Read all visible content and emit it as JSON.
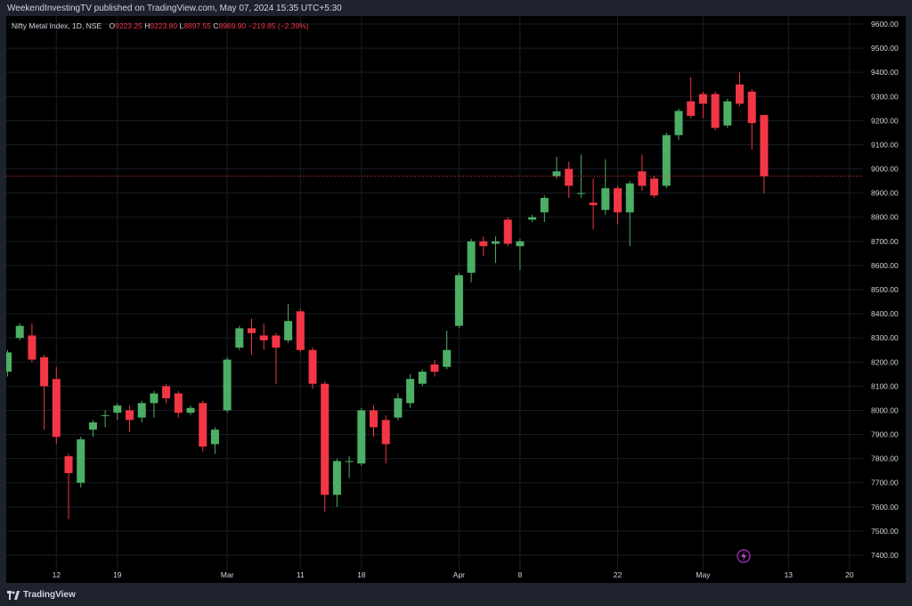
{
  "header": {
    "publisher": "WeekendInvestingTV published on TradingView.com, May 07, 2024 15:35 UTC+5:30"
  },
  "legend": {
    "symbol": "Nifty Metal Index, 1D, NSE",
    "open_label": "O",
    "open": "9223.25",
    "high_label": "H",
    "high": "9223.80",
    "low_label": "L",
    "low": "8897.55",
    "close_label": "C",
    "close": "8969.90",
    "change": "−219.85 (−2.39%)"
  },
  "footer": {
    "brand": "TradingView"
  },
  "colors": {
    "up": "#4caf65",
    "down": "#f23645",
    "price_line": "#f23645",
    "grid": "#1a1d26",
    "axis_text": "#d1d4dc"
  },
  "chart_data": {
    "type": "candlestick",
    "title": "Nifty Metal Index, 1D, NSE",
    "y_range": [
      7380,
      9640
    ],
    "y_ticks": [
      "9600.00",
      "9500.00",
      "9400.00",
      "9300.00",
      "9200.00",
      "9100.00",
      "9000.00",
      "8900.00",
      "8800.00",
      "8700.00",
      "8600.00",
      "8500.00",
      "8400.00",
      "8300.00",
      "8200.00",
      "8100.00",
      "8000.00",
      "7900.00",
      "7800.00",
      "7700.00",
      "7600.00",
      "7500.00",
      "7400.00"
    ],
    "x_ticks": [
      {
        "label": "12",
        "index": 4
      },
      {
        "label": "19",
        "index": 9
      },
      {
        "label": "Mar",
        "index": 18
      },
      {
        "label": "11",
        "index": 24
      },
      {
        "label": "18",
        "index": 29
      },
      {
        "label": "Apr",
        "index": 37
      },
      {
        "label": "8",
        "index": 42
      },
      {
        "label": "22",
        "index": 50
      },
      {
        "label": "May",
        "index": 57
      },
      {
        "label": "13",
        "index": 64
      },
      {
        "label": "20",
        "index": 69
      }
    ],
    "last_price": 8969.9,
    "candles": [
      [
        8160,
        8240,
        8140,
        8250
      ],
      [
        8300,
        8350,
        8290,
        8360
      ],
      [
        8310,
        8210,
        8200,
        8360
      ],
      [
        8220,
        8100,
        7920,
        8230
      ],
      [
        8130,
        7890,
        7860,
        8180
      ],
      [
        7810,
        7740,
        7550,
        7820
      ],
      [
        7700,
        7880,
        7680,
        7890
      ],
      [
        7920,
        7950,
        7890,
        7960
      ],
      [
        7980,
        7980,
        7930,
        8000
      ],
      [
        7990,
        8020,
        7960,
        8030
      ],
      [
        8000,
        7960,
        7910,
        8020
      ],
      [
        7970,
        8030,
        7950,
        8040
      ],
      [
        8030,
        8070,
        7970,
        8080
      ],
      [
        8100,
        8050,
        8030,
        8110
      ],
      [
        8070,
        7990,
        7970,
        8080
      ],
      [
        7990,
        8010,
        7980,
        8020
      ],
      [
        8030,
        7850,
        7830,
        8040
      ],
      [
        7860,
        7920,
        7820,
        7930
      ],
      [
        8000,
        8210,
        7990,
        8220
      ],
      [
        8260,
        8340,
        8250,
        8350
      ],
      [
        8340,
        8320,
        8230,
        8380
      ],
      [
        8310,
        8290,
        8250,
        8360
      ],
      [
        8310,
        8260,
        8110,
        8320
      ],
      [
        8290,
        8370,
        8280,
        8440
      ],
      [
        8410,
        8250,
        8240,
        8420
      ],
      [
        8250,
        8110,
        8090,
        8260
      ],
      [
        8110,
        7650,
        7580,
        8120
      ],
      [
        7650,
        7790,
        7600,
        7800
      ],
      [
        7790,
        7790,
        7720,
        7810
      ],
      [
        7780,
        8000,
        7770,
        8010
      ],
      [
        8000,
        7930,
        7890,
        8020
      ],
      [
        7960,
        7860,
        7780,
        7980
      ],
      [
        7970,
        8050,
        7960,
        8070
      ],
      [
        8030,
        8130,
        8010,
        8150
      ],
      [
        8110,
        8160,
        8100,
        8170
      ],
      [
        8190,
        8160,
        8140,
        8210
      ],
      [
        8180,
        8250,
        8170,
        8330
      ],
      [
        8350,
        8560,
        8340,
        8570
      ],
      [
        8570,
        8700,
        8530,
        8710
      ],
      [
        8700,
        8680,
        8640,
        8720
      ],
      [
        8690,
        8700,
        8610,
        8720
      ],
      [
        8790,
        8690,
        8680,
        8800
      ],
      [
        8680,
        8700,
        8580,
        8710
      ],
      [
        8790,
        8800,
        8780,
        8810
      ],
      [
        8820,
        8880,
        8780,
        8890
      ],
      [
        8970,
        8990,
        8960,
        9050
      ],
      [
        9000,
        8930,
        8880,
        9030
      ],
      [
        8900,
        8900,
        8880,
        9060
      ],
      [
        8860,
        8850,
        8750,
        8960
      ],
      [
        8830,
        8920,
        8810,
        9040
      ],
      [
        8920,
        8820,
        8770,
        8930
      ],
      [
        8820,
        8940,
        8680,
        8950
      ],
      [
        8990,
        8930,
        8910,
        9060
      ],
      [
        8960,
        8890,
        8880,
        8970
      ],
      [
        8930,
        9140,
        8920,
        9150
      ],
      [
        9140,
        9240,
        9120,
        9250
      ],
      [
        9280,
        9220,
        9210,
        9380
      ],
      [
        9310,
        9270,
        9210,
        9320
      ],
      [
        9310,
        9170,
        9160,
        9320
      ],
      [
        9180,
        9280,
        9170,
        9290
      ],
      [
        9350,
        9270,
        9260,
        9400
      ],
      [
        9320,
        9190,
        9080,
        9330
      ],
      [
        9223.25,
        8969.9,
        8897.55,
        9223.8
      ]
    ]
  }
}
